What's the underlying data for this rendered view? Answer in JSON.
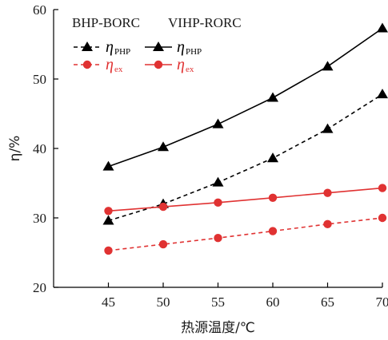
{
  "chart_data": {
    "type": "line",
    "x": [
      45,
      50,
      55,
      60,
      65,
      70
    ],
    "xlim": [
      40,
      70
    ],
    "ylim": [
      20,
      60
    ],
    "xticks": [
      "45",
      "50",
      "55",
      "60",
      "65",
      "70"
    ],
    "yticks": [
      "20",
      "30",
      "40",
      "50",
      "60"
    ],
    "xlabel": "热源温度/℃",
    "ylabel": "η/%",
    "grid": false,
    "legend": {
      "placement": "top-left",
      "group_labels": [
        "BHP-BORC",
        "VIHP-RORC"
      ],
      "eta_symbol": "η",
      "php_subscript": "PHP",
      "ex_subscript": "ex"
    },
    "series": [
      {
        "key": "bhp_php",
        "values": [
          29.6,
          32.0,
          35.1,
          38.6,
          42.8,
          47.8
        ],
        "color": "#000000",
        "marker": "triangle",
        "dashed": true
      },
      {
        "key": "vihp_php",
        "values": [
          37.4,
          40.2,
          43.5,
          47.3,
          51.8,
          57.3
        ],
        "color": "#000000",
        "marker": "triangle",
        "dashed": false
      },
      {
        "key": "bhp_ex",
        "values": [
          25.3,
          26.2,
          27.1,
          28.1,
          29.1,
          30.0
        ],
        "color": "#e03232",
        "marker": "circle",
        "dashed": true
      },
      {
        "key": "vihp_ex",
        "values": [
          31.0,
          31.6,
          32.2,
          32.9,
          33.6,
          34.3
        ],
        "color": "#e03232",
        "marker": "circle",
        "dashed": false
      }
    ]
  }
}
